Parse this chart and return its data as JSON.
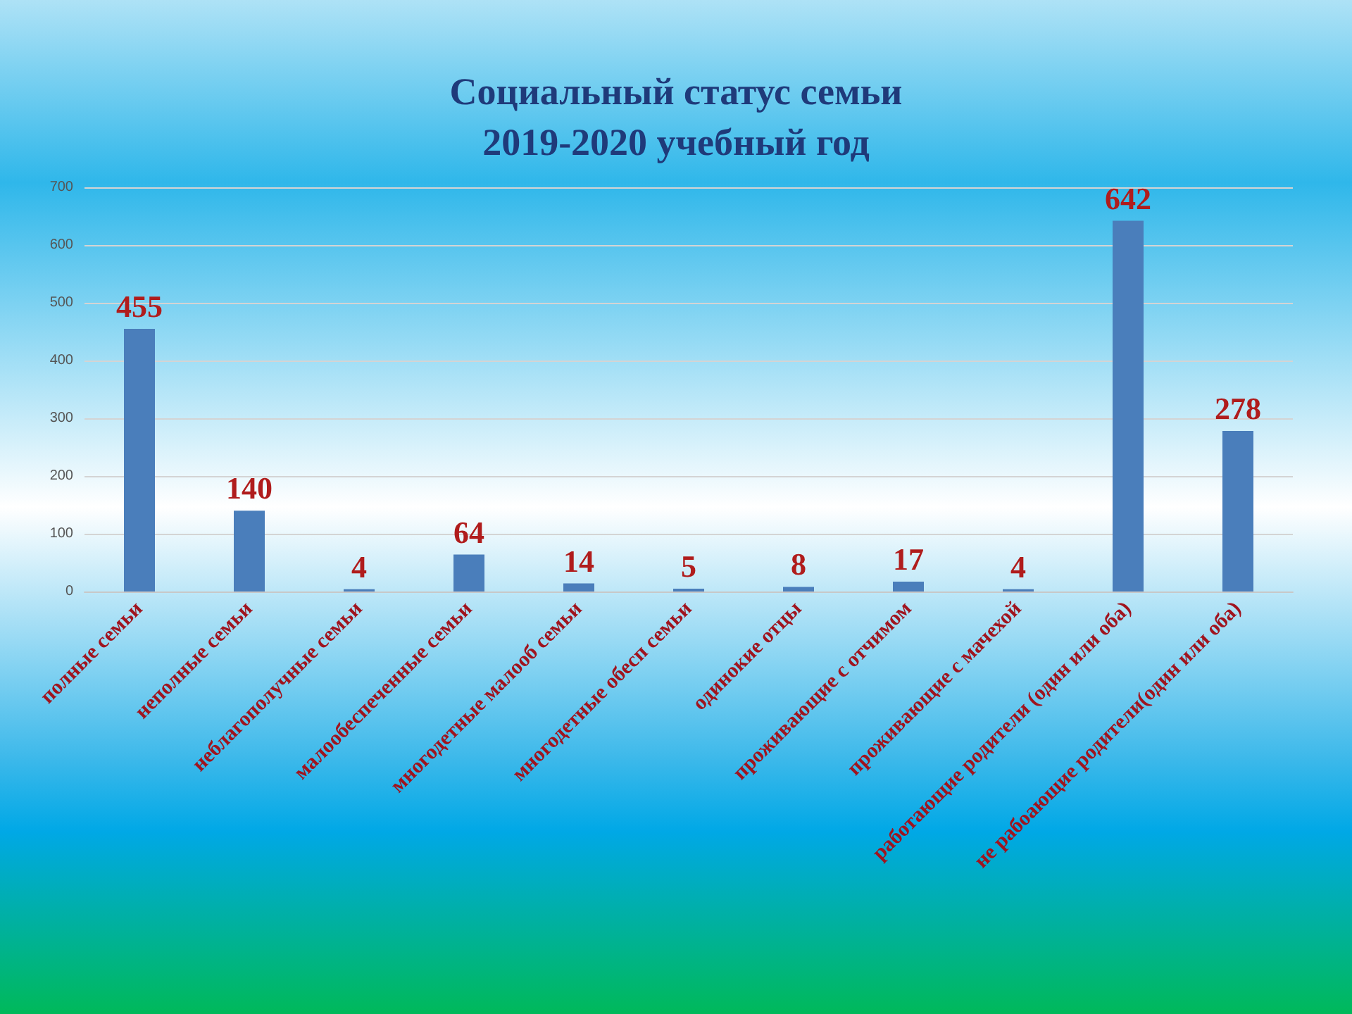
{
  "chart_data": {
    "type": "bar",
    "title": "Социальный статус семьи\n2019-2020 учебный год",
    "categories": [
      "полные семьи",
      "неполные семьи",
      "неблагополучные семьи",
      "малообеспеченные семьи",
      "многодетные малооб семьи",
      "многодетные обесп семьи",
      "одинокие отцы",
      "проживающие с отчимом",
      "проживающие с мачехой",
      "работающие родители (один или оба)",
      "не рабоающие родители(один или оба)"
    ],
    "values": [
      455,
      140,
      4,
      64,
      14,
      5,
      8,
      17,
      4,
      642,
      278
    ],
    "color": "#4a7ebb",
    "ylim": [
      0,
      700
    ],
    "yticks": [
      0,
      100,
      200,
      300,
      400,
      500,
      600,
      700
    ],
    "grid": "y",
    "data_labels": true
  }
}
